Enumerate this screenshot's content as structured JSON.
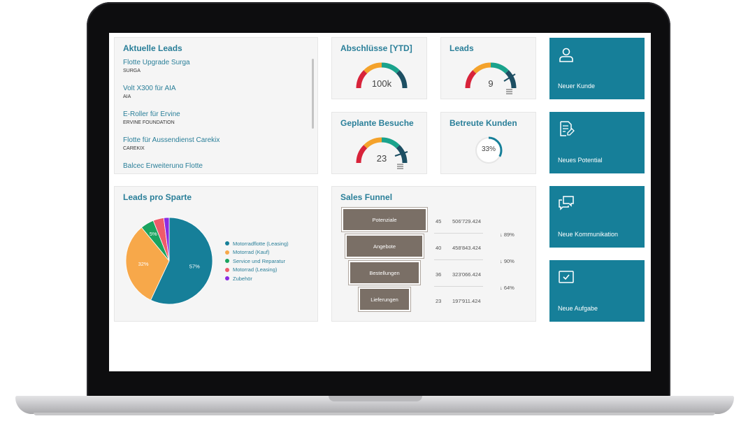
{
  "leads_panel": {
    "title": "Aktuelle Leads",
    "items": [
      {
        "title": "Flotte Upgrade Surga",
        "company": "SURGA"
      },
      {
        "title": "Volt X300 für AIA",
        "company": "AIA"
      },
      {
        "title": "E-Roller für Ervine",
        "company": "ERVINE FOUNDATION"
      },
      {
        "title": "Flotte für Aussendienst Carekix",
        "company": "CAREKIX"
      },
      {
        "title": "Balcec Erweiterung Flotte",
        "company": ""
      }
    ]
  },
  "kpis": {
    "abschluesse": {
      "title": "Abschlüsse [YTD]",
      "value": "100k"
    },
    "leads": {
      "title": "Leads",
      "value": "9"
    },
    "geplante_besuche": {
      "title": "Geplante Besuche",
      "value": "23"
    },
    "betreute_kunden": {
      "title": "Betreute Kunden",
      "value": "33%",
      "fraction": 0.33
    }
  },
  "actions": {
    "neuer_kunde": "Neuer Kunde",
    "neues_potential": "Neues Potential",
    "neue_kommunikation": "Neue Kommunikation",
    "neue_aufgabe": "Neue Aufgabe"
  },
  "pie_panel": {
    "title": "Leads pro Sparte"
  },
  "chart_data": {
    "type": "pie",
    "legend_position": "right",
    "series": [
      {
        "name": "Motorradflotte (Leasing)",
        "value": 57,
        "label": "57%",
        "color": "#167f99"
      },
      {
        "name": "Motorrad (Kauf)",
        "value": 32,
        "label": "32%",
        "color": "#f7a84a"
      },
      {
        "name": "Service und Reparatur",
        "value": 5,
        "label": "5%",
        "color": "#1aa35f"
      },
      {
        "name": "Motorrad (Leasing)",
        "value": 4,
        "label": "",
        "color": "#ef5b6a"
      },
      {
        "name": "Zubehör",
        "value": 2,
        "label": "",
        "color": "#8a2be2"
      }
    ]
  },
  "funnel_panel": {
    "title": "Sales Funnel",
    "stages": [
      {
        "label": "Potenziale",
        "count": "45",
        "amount": "506'729.424"
      },
      {
        "label": "Angebote",
        "count": "40",
        "amount": "458'843.424"
      },
      {
        "label": "Bestellungen",
        "count": "36",
        "amount": "323'066.424"
      },
      {
        "label": "Lieferungen",
        "count": "23",
        "amount": "197'911.424"
      }
    ],
    "rates": [
      "↓ 89%",
      "↓ 90%",
      "↓ 64%"
    ]
  }
}
